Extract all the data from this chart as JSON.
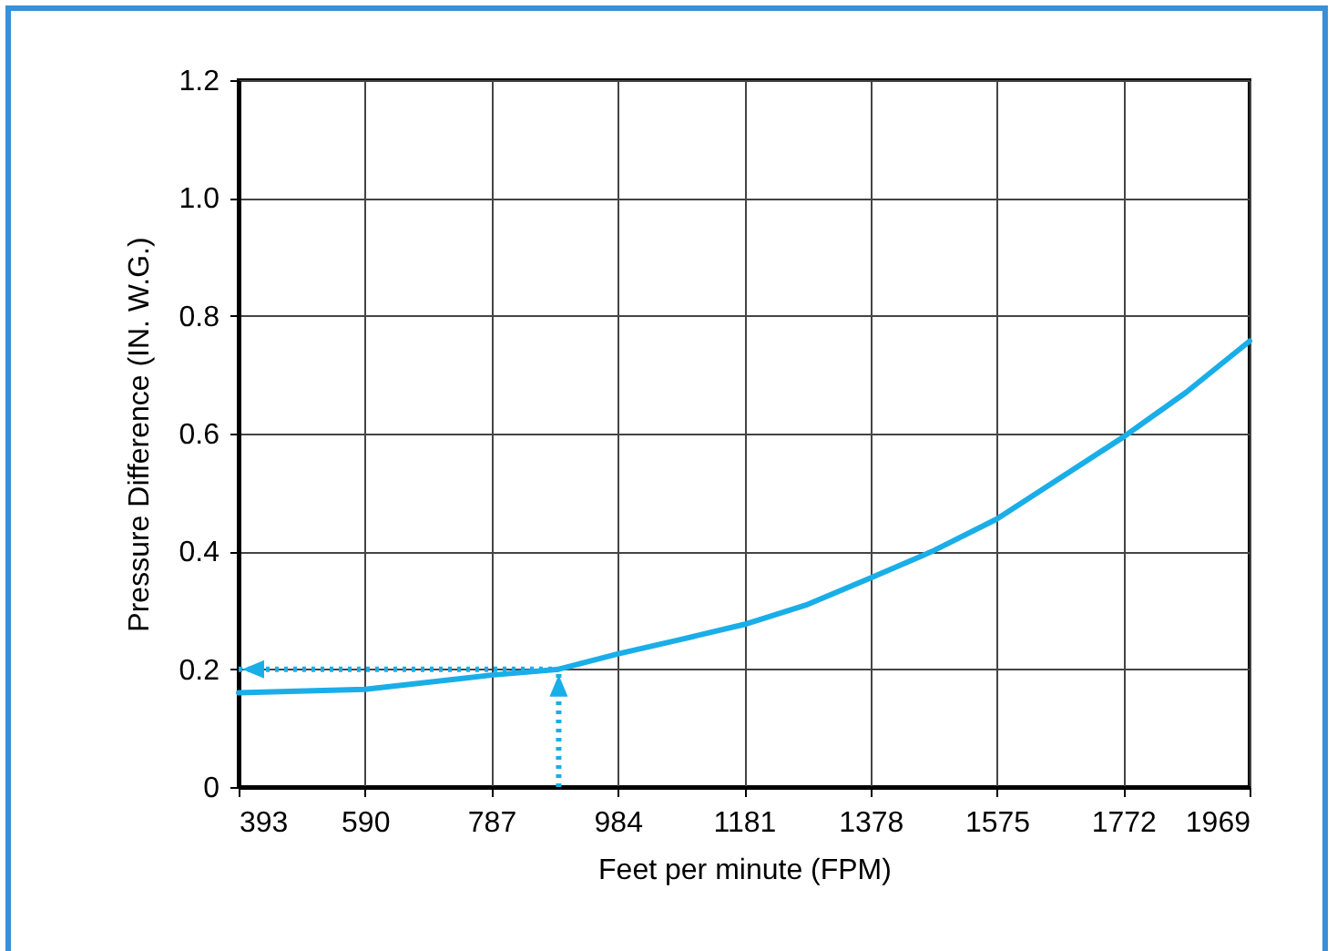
{
  "chart_data": {
    "type": "line",
    "xlabel": "Feet per minute (FPM)",
    "ylabel": "Pressure Difference (IN. W.G.)",
    "x": [
      393,
      590,
      787,
      892,
      984,
      1080,
      1181,
      1280,
      1378,
      1474,
      1575,
      1772,
      1870,
      1969
    ],
    "series": [
      {
        "color": "#1aaee8",
        "values": [
          0.16,
          0.166,
          0.19,
          0.2,
          0.226,
          0.25,
          0.276,
          0.31,
          0.355,
          0.4,
          0.455,
          0.594,
          0.67,
          0.757
        ]
      }
    ],
    "xlim": [
      393,
      1969
    ],
    "xticks": [
      393,
      590,
      787,
      984,
      1181,
      1378,
      1575,
      1772,
      1969
    ],
    "ylim": [
      0,
      1.2
    ],
    "yticks": [
      0,
      0.2,
      0.4,
      0.6,
      0.8,
      {
        "value": 1.0,
        "label": "1.0"
      },
      1.2
    ],
    "grid": true,
    "marker": "none",
    "line_style": "solid",
    "ref_lines": [
      {
        "axis": "x",
        "value": 892,
        "color": "#1aaee8",
        "line_style": "dotted"
      },
      {
        "axis": "y",
        "value": 0.2,
        "color": "#1aaee8",
        "line_style": "dotted"
      }
    ]
  }
}
